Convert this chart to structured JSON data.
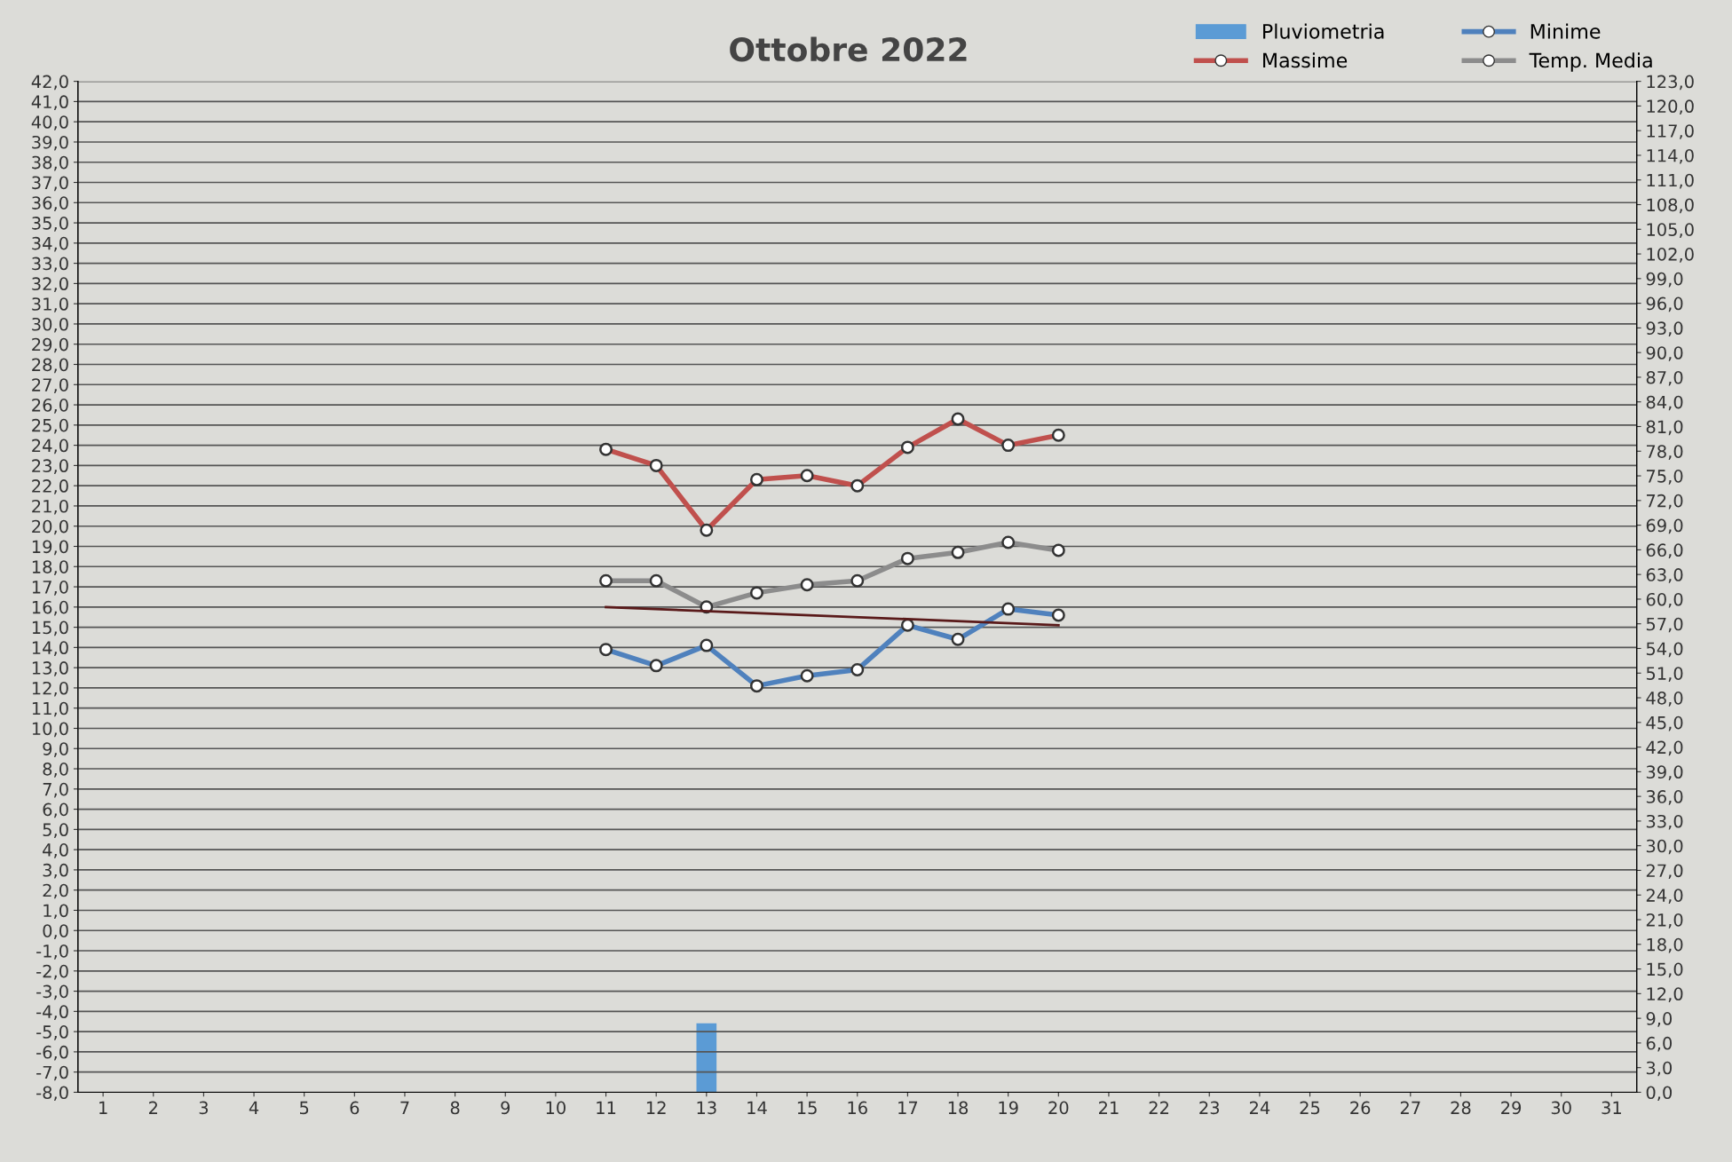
{
  "chart_data": {
    "type": "line",
    "title": "Ottobre 2022",
    "categories": [
      "1",
      "2",
      "3",
      "4",
      "5",
      "6",
      "7",
      "8",
      "9",
      "10",
      "11",
      "12",
      "13",
      "14",
      "15",
      "16",
      "17",
      "18",
      "19",
      "20",
      "21",
      "22",
      "23",
      "24",
      "25",
      "26",
      "27",
      "28",
      "29",
      "30",
      "31"
    ],
    "series": [
      {
        "name": "Pluviometria",
        "type": "bar",
        "axis": "y2",
        "color": "#5b9bd5",
        "values": [
          null,
          null,
          null,
          null,
          null,
          null,
          null,
          null,
          null,
          null,
          null,
          null,
          8.4,
          null,
          null,
          null,
          null,
          null,
          null,
          null,
          null,
          null,
          null,
          null,
          null,
          null,
          null,
          null,
          null,
          null,
          null
        ]
      },
      {
        "name": "Massime",
        "color": "#c0504d",
        "marker": "circle",
        "values": [
          null,
          null,
          null,
          null,
          null,
          null,
          null,
          null,
          null,
          null,
          23.8,
          23.0,
          19.8,
          22.3,
          22.5,
          22.0,
          23.9,
          25.3,
          24.0,
          24.5,
          null,
          null,
          null,
          null,
          null,
          null,
          null,
          null,
          null,
          null,
          null
        ]
      },
      {
        "name": "Minime",
        "color": "#4f81bd",
        "marker": "circle",
        "values": [
          null,
          null,
          null,
          null,
          null,
          null,
          null,
          null,
          null,
          null,
          13.9,
          13.1,
          14.1,
          12.1,
          12.6,
          12.9,
          15.1,
          14.4,
          15.9,
          15.6,
          null,
          null,
          null,
          null,
          null,
          null,
          null,
          null,
          null,
          null,
          null
        ]
      },
      {
        "name": "Temp. Media",
        "color": "#8c8c8c",
        "marker": "circle",
        "values": [
          null,
          null,
          null,
          null,
          null,
          null,
          null,
          null,
          null,
          null,
          17.3,
          17.3,
          16.0,
          16.7,
          17.1,
          17.3,
          18.4,
          18.7,
          19.2,
          18.8,
          null,
          null,
          null,
          null,
          null,
          null,
          null,
          null,
          null,
          null,
          null
        ]
      },
      {
        "color": "#5a1a1a",
        "marker": "none",
        "values": [
          null,
          null,
          null,
          null,
          null,
          null,
          null,
          null,
          null,
          null,
          16.0,
          null,
          null,
          null,
          null,
          null,
          null,
          null,
          null,
          15.1,
          null,
          null,
          null,
          null,
          null,
          null,
          null,
          null,
          null,
          null,
          null
        ]
      }
    ],
    "ylim": [
      -8,
      42
    ],
    "yticks": [
      {
        "value": -8,
        "label": "-8,0"
      },
      {
        "value": -7,
        "label": "-7,0"
      },
      {
        "value": -6,
        "label": "-6,0"
      },
      {
        "value": -5,
        "label": "-5,0"
      },
      {
        "value": -4,
        "label": "-4,0"
      },
      {
        "value": -3,
        "label": "-3,0"
      },
      {
        "value": -2,
        "label": "-2,0"
      },
      {
        "value": -1,
        "label": "-1,0"
      },
      {
        "value": 0,
        "label": "0,0"
      },
      {
        "value": 1,
        "label": "1,0"
      },
      {
        "value": 2,
        "label": "2,0"
      },
      {
        "value": 3,
        "label": "3,0"
      },
      {
        "value": 4,
        "label": "4,0"
      },
      {
        "value": 5,
        "label": "5,0"
      },
      {
        "value": 6,
        "label": "6,0"
      },
      {
        "value": 7,
        "label": "7,0"
      },
      {
        "value": 8,
        "label": "8,0"
      },
      {
        "value": 9,
        "label": "9,0"
      },
      {
        "value": 10,
        "label": "10,0"
      },
      {
        "value": 11,
        "label": "11,0"
      },
      {
        "value": 12,
        "label": "12,0"
      },
      {
        "value": 13,
        "label": "13,0"
      },
      {
        "value": 14,
        "label": "14,0"
      },
      {
        "value": 15,
        "label": "15,0"
      },
      {
        "value": 16,
        "label": "16,0"
      },
      {
        "value": 17,
        "label": "17,0"
      },
      {
        "value": 18,
        "label": "18,0"
      },
      {
        "value": 19,
        "label": "19,0"
      },
      {
        "value": 20,
        "label": "20,0"
      },
      {
        "value": 21,
        "label": "21,0"
      },
      {
        "value": 22,
        "label": "22,0"
      },
      {
        "value": 23,
        "label": "23,0"
      },
      {
        "value": 24,
        "label": "24,0"
      },
      {
        "value": 25,
        "label": "25,0"
      },
      {
        "value": 26,
        "label": "26,0"
      },
      {
        "value": 27,
        "label": "27,0"
      },
      {
        "value": 28,
        "label": "28,0"
      },
      {
        "value": 29,
        "label": "29,0"
      },
      {
        "value": 30,
        "label": "30,0"
      },
      {
        "value": 31,
        "label": "31,0"
      },
      {
        "value": 32,
        "label": "32,0"
      },
      {
        "value": 33,
        "label": "33,0"
      },
      {
        "value": 34,
        "label": "34,0"
      },
      {
        "value": 35,
        "label": "35,0"
      },
      {
        "value": 36,
        "label": "36,0"
      },
      {
        "value": 37,
        "label": "37,0"
      },
      {
        "value": 38,
        "label": "38,0"
      },
      {
        "value": 39,
        "label": "39,0"
      },
      {
        "value": 40,
        "label": "40,0"
      },
      {
        "value": 41,
        "label": "41,0"
      },
      {
        "value": 42,
        "label": "42,0"
      }
    ],
    "y2lim": [
      0,
      123
    ],
    "y2ticks": [
      {
        "value": 0,
        "label": "0,0"
      },
      {
        "value": 3,
        "label": "3,0"
      },
      {
        "value": 6,
        "label": "6,0"
      },
      {
        "value": 9,
        "label": "9,0"
      },
      {
        "value": 12,
        "label": "12,0"
      },
      {
        "value": 15,
        "label": "15,0"
      },
      {
        "value": 18,
        "label": "18,0"
      },
      {
        "value": 21,
        "label": "21,0"
      },
      {
        "value": 24,
        "label": "24,0"
      },
      {
        "value": 27,
        "label": "27,0"
      },
      {
        "value": 30,
        "label": "30,0"
      },
      {
        "value": 33,
        "label": "33,0"
      },
      {
        "value": 36,
        "label": "36,0"
      },
      {
        "value": 39,
        "label": "39,0"
      },
      {
        "value": 42,
        "label": "42,0"
      },
      {
        "value": 45,
        "label": "45,0"
      },
      {
        "value": 48,
        "label": "48,0"
      },
      {
        "value": 51,
        "label": "51,0"
      },
      {
        "value": 54,
        "label": "54,0"
      },
      {
        "value": 57,
        "label": "57,0"
      },
      {
        "value": 60,
        "label": "60,0"
      },
      {
        "value": 63,
        "label": "63,0"
      },
      {
        "value": 66,
        "label": "66,0"
      },
      {
        "value": 69,
        "label": "69,0"
      },
      {
        "value": 72,
        "label": "72,0"
      },
      {
        "value": 75,
        "label": "75,0"
      },
      {
        "value": 78,
        "label": "78,0"
      },
      {
        "value": 81,
        "label": "81,0"
      },
      {
        "value": 84,
        "label": "84,0"
      },
      {
        "value": 87,
        "label": "87,0"
      },
      {
        "value": 90,
        "label": "90,0"
      },
      {
        "value": 93,
        "label": "93,0"
      },
      {
        "value": 96,
        "label": "96,0"
      },
      {
        "value": 99,
        "label": "99,0"
      },
      {
        "value": 102,
        "label": "102,0"
      },
      {
        "value": 105,
        "label": "105,0"
      },
      {
        "value": 108,
        "label": "108,0"
      },
      {
        "value": 111,
        "label": "111,0"
      },
      {
        "value": 114,
        "label": "114,0"
      },
      {
        "value": 117,
        "label": "117,0"
      },
      {
        "value": 120,
        "label": "120,0"
      },
      {
        "value": 123,
        "label": "123,0"
      }
    ],
    "grid": "y",
    "legend": "top right"
  }
}
